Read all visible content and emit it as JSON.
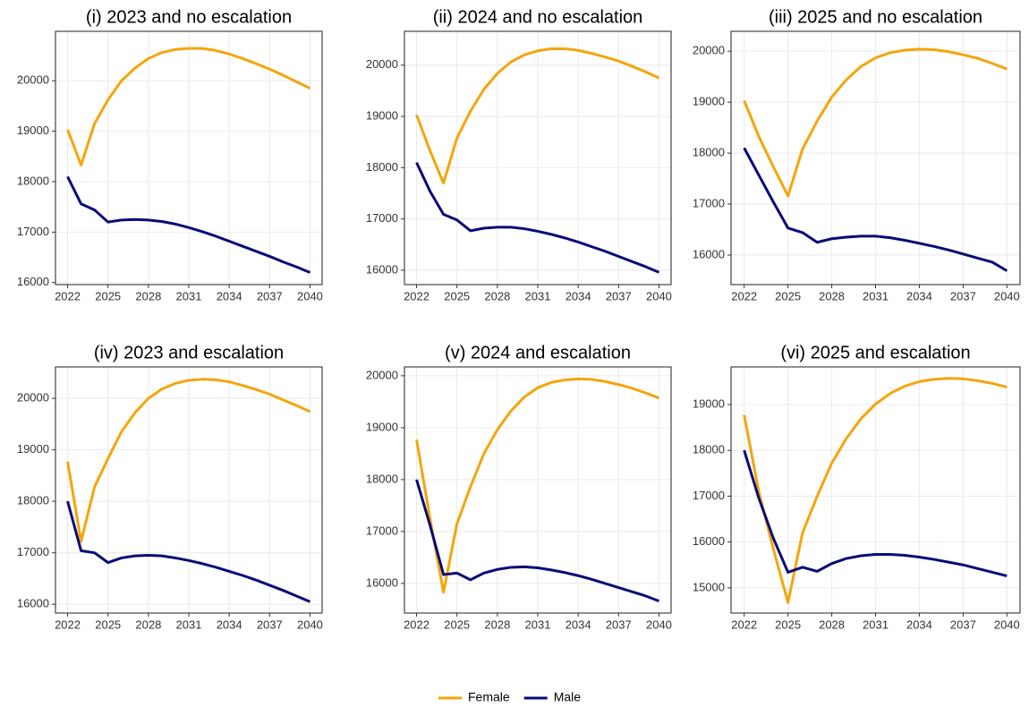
{
  "chart_data": [
    {
      "type": "line",
      "title": "(i) 2023 and no escalation",
      "x": [
        2022,
        2023,
        2024,
        2025,
        2026,
        2027,
        2028,
        2029,
        2030,
        2031,
        2032,
        2033,
        2034,
        2035,
        2036,
        2037,
        2038,
        2039,
        2040
      ],
      "series": [
        {
          "name": "Female",
          "color": "#f5a50a",
          "values": [
            19030,
            18330,
            19150,
            19620,
            20000,
            20250,
            20440,
            20560,
            20620,
            20640,
            20640,
            20600,
            20530,
            20440,
            20340,
            20230,
            20110,
            19980,
            19850
          ]
        },
        {
          "name": "Male",
          "color": "#0a0a78",
          "values": [
            18100,
            17560,
            17440,
            17200,
            17240,
            17250,
            17240,
            17210,
            17160,
            17090,
            17010,
            16920,
            16820,
            16720,
            16620,
            16520,
            16410,
            16310,
            16200
          ]
        }
      ],
      "xlim": [
        2021.1,
        2040.9
      ],
      "xticks": [
        2022,
        2025,
        2028,
        2031,
        2034,
        2037,
        2040
      ],
      "ylim": [
        15960,
        20980
      ],
      "yticks": [
        16000,
        17000,
        18000,
        19000,
        20000
      ],
      "grid": true
    },
    {
      "type": "line",
      "title": "(ii) 2024 and no escalation",
      "x": [
        2022,
        2023,
        2024,
        2025,
        2026,
        2027,
        2028,
        2029,
        2030,
        2031,
        2032,
        2033,
        2034,
        2035,
        2036,
        2037,
        2038,
        2039,
        2040
      ],
      "series": [
        {
          "name": "Female",
          "color": "#f5a50a",
          "values": [
            19030,
            18330,
            17700,
            18580,
            19100,
            19530,
            19840,
            20060,
            20200,
            20280,
            20320,
            20320,
            20290,
            20230,
            20160,
            20080,
            19980,
            19870,
            19750
          ]
        },
        {
          "name": "Male",
          "color": "#0a0a78",
          "values": [
            18100,
            17540,
            17090,
            16980,
            16770,
            16820,
            16840,
            16840,
            16810,
            16760,
            16700,
            16630,
            16550,
            16460,
            16370,
            16270,
            16170,
            16070,
            15960
          ]
        }
      ],
      "xlim": [
        2021.1,
        2040.9
      ],
      "xticks": [
        2022,
        2025,
        2028,
        2031,
        2034,
        2037,
        2040
      ],
      "ylim": [
        15720,
        20660
      ],
      "yticks": [
        16000,
        17000,
        18000,
        19000,
        20000
      ],
      "grid": true
    },
    {
      "type": "line",
      "title": "(iii) 2025 and no escalation",
      "x": [
        2022,
        2023,
        2024,
        2025,
        2026,
        2027,
        2028,
        2029,
        2030,
        2031,
        2032,
        2033,
        2034,
        2035,
        2036,
        2037,
        2038,
        2039,
        2040
      ],
      "series": [
        {
          "name": "Female",
          "color": "#f5a50a",
          "values": [
            19030,
            18330,
            17730,
            17160,
            18080,
            18630,
            19100,
            19440,
            19700,
            19870,
            19970,
            20020,
            20040,
            20030,
            19990,
            19930,
            19860,
            19760,
            19650
          ]
        },
        {
          "name": "Male",
          "color": "#0a0a78",
          "values": [
            18100,
            17570,
            17040,
            16530,
            16440,
            16250,
            16320,
            16350,
            16370,
            16370,
            16340,
            16290,
            16230,
            16170,
            16100,
            16020,
            15940,
            15860,
            15690
          ]
        }
      ],
      "xlim": [
        2021.1,
        2040.9
      ],
      "xticks": [
        2022,
        2025,
        2028,
        2031,
        2034,
        2037,
        2040
      ],
      "ylim": [
        15420,
        20390
      ],
      "yticks": [
        16000,
        17000,
        18000,
        19000,
        20000
      ],
      "grid": true
    },
    {
      "type": "line",
      "title": "(iv) 2023 and escalation",
      "x": [
        2022,
        2023,
        2024,
        2025,
        2026,
        2027,
        2028,
        2029,
        2030,
        2031,
        2032,
        2033,
        2034,
        2035,
        2036,
        2037,
        2038,
        2039,
        2040
      ],
      "series": [
        {
          "name": "Female",
          "color": "#f5a50a",
          "values": [
            18770,
            17220,
            18280,
            18830,
            19350,
            19720,
            20000,
            20180,
            20290,
            20350,
            20370,
            20360,
            20320,
            20250,
            20170,
            20080,
            19970,
            19860,
            19740
          ]
        },
        {
          "name": "Male",
          "color": "#0a0a78",
          "values": [
            18000,
            17040,
            17000,
            16810,
            16900,
            16940,
            16950,
            16940,
            16900,
            16850,
            16790,
            16720,
            16640,
            16560,
            16470,
            16370,
            16270,
            16160,
            16050
          ]
        }
      ],
      "xlim": [
        2021.1,
        2040.9
      ],
      "xticks": [
        2022,
        2025,
        2028,
        2031,
        2034,
        2037,
        2040
      ],
      "ylim": [
        15830,
        20610
      ],
      "yticks": [
        16000,
        17000,
        18000,
        19000,
        20000
      ],
      "grid": true
    },
    {
      "type": "line",
      "title": "(v) 2024 and escalation",
      "x": [
        2022,
        2023,
        2024,
        2025,
        2026,
        2027,
        2028,
        2029,
        2030,
        2031,
        2032,
        2033,
        2034,
        2035,
        2036,
        2037,
        2038,
        2039,
        2040
      ],
      "series": [
        {
          "name": "Female",
          "color": "#f5a50a",
          "values": [
            18770,
            17250,
            15830,
            17150,
            17860,
            18500,
            18960,
            19320,
            19590,
            19770,
            19870,
            19920,
            19940,
            19930,
            19890,
            19830,
            19760,
            19670,
            19570
          ]
        },
        {
          "name": "Male",
          "color": "#0a0a78",
          "values": [
            18000,
            17120,
            16170,
            16200,
            16070,
            16200,
            16270,
            16310,
            16320,
            16300,
            16260,
            16210,
            16150,
            16080,
            16000,
            15920,
            15840,
            15760,
            15660
          ]
        }
      ],
      "xlim": [
        2021.1,
        2040.9
      ],
      "xticks": [
        2022,
        2025,
        2028,
        2031,
        2034,
        2037,
        2040
      ],
      "ylim": [
        15430,
        20170
      ],
      "yticks": [
        16000,
        17000,
        18000,
        19000,
        20000
      ],
      "grid": true
    },
    {
      "type": "line",
      "title": "(vi) 2025 and escalation",
      "x": [
        2022,
        2023,
        2024,
        2025,
        2026,
        2027,
        2028,
        2029,
        2030,
        2031,
        2032,
        2033,
        2034,
        2035,
        2036,
        2037,
        2038,
        2039,
        2040
      ],
      "series": [
        {
          "name": "Female",
          "color": "#f5a50a",
          "values": [
            18770,
            17100,
            15850,
            14680,
            16200,
            17000,
            17720,
            18260,
            18690,
            19010,
            19240,
            19400,
            19500,
            19550,
            19570,
            19560,
            19520,
            19460,
            19380
          ]
        },
        {
          "name": "Male",
          "color": "#0a0a78",
          "values": [
            18000,
            16960,
            16080,
            15340,
            15450,
            15360,
            15530,
            15640,
            15700,
            15730,
            15730,
            15710,
            15670,
            15620,
            15560,
            15500,
            15420,
            15340,
            15260
          ]
        }
      ],
      "xlim": [
        2021.1,
        2040.9
      ],
      "xticks": [
        2022,
        2025,
        2028,
        2031,
        2034,
        2037,
        2040
      ],
      "ylim": [
        14450,
        19820
      ],
      "yticks": [
        15000,
        16000,
        17000,
        18000,
        19000
      ],
      "grid": true
    }
  ]
}
